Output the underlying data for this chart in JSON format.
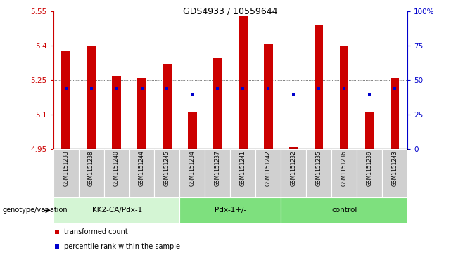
{
  "title": "GDS4933 / 10559644",
  "samples": [
    "GSM1151233",
    "GSM1151238",
    "GSM1151240",
    "GSM1151244",
    "GSM1151245",
    "GSM1151234",
    "GSM1151237",
    "GSM1151241",
    "GSM1151242",
    "GSM1151232",
    "GSM1151235",
    "GSM1151236",
    "GSM1151239",
    "GSM1151243"
  ],
  "bar_values": [
    5.38,
    5.4,
    5.27,
    5.26,
    5.32,
    5.11,
    5.35,
    5.53,
    5.41,
    4.96,
    5.49,
    5.4,
    5.11,
    5.26
  ],
  "percentile_values": [
    5.215,
    5.215,
    5.215,
    5.215,
    5.215,
    5.19,
    5.215,
    5.215,
    5.215,
    5.19,
    5.215,
    5.215,
    5.19,
    5.215
  ],
  "bar_bottom": 4.95,
  "ylim_left": [
    4.95,
    5.55
  ],
  "ylim_right": [
    0,
    100
  ],
  "yticks_left": [
    4.95,
    5.1,
    5.25,
    5.4,
    5.55
  ],
  "yticks_right": [
    0,
    25,
    50,
    75,
    100
  ],
  "ytick_labels_left": [
    "4.95",
    "5.1",
    "5.25",
    "5.4",
    "5.55"
  ],
  "ytick_labels_right": [
    "0",
    "25",
    "50",
    "75",
    "100%"
  ],
  "groups": [
    {
      "label": "IKK2-CA/Pdx-1",
      "start": 0,
      "end": 5,
      "color": "#d4f5d4"
    },
    {
      "label": "Pdx-1+/-",
      "start": 5,
      "end": 9,
      "color": "#7ee07e"
    },
    {
      "label": "control",
      "start": 9,
      "end": 14,
      "color": "#7ee07e"
    }
  ],
  "group_row_label": "genotype/variation",
  "bar_color": "#cc0000",
  "percentile_color": "#0000cc",
  "legend_label_1": "transformed count",
  "legend_label_2": "percentile rank within the sample",
  "bar_width": 0.35,
  "grid_lines": [
    5.1,
    5.25,
    5.4
  ],
  "sample_bg": "#d0d0d0",
  "tick_color_left": "#cc0000",
  "tick_color_right": "#0000cc"
}
